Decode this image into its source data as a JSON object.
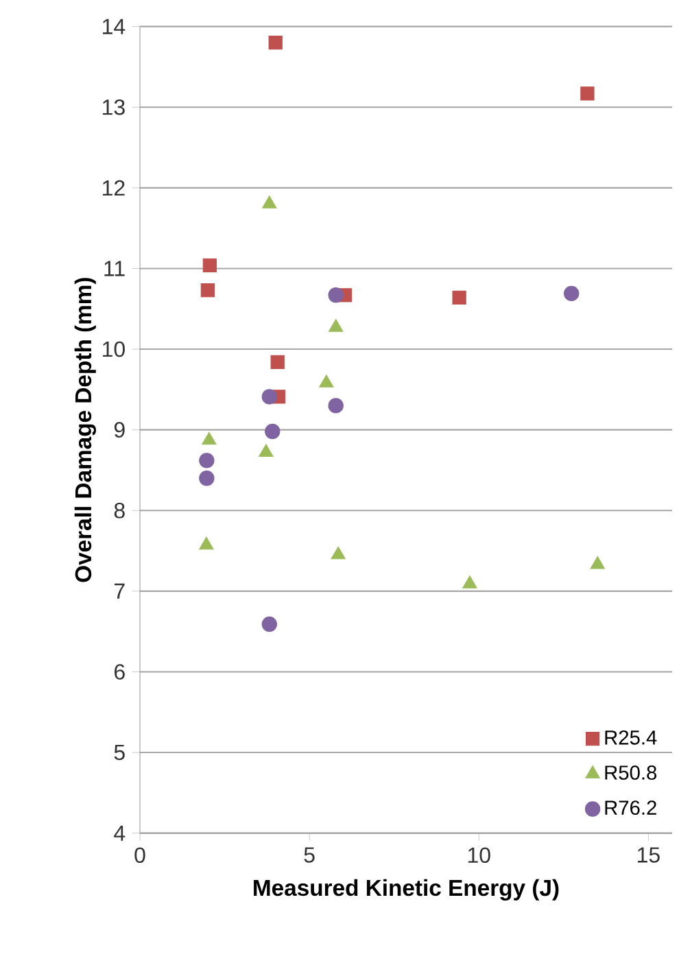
{
  "chart_data": {
    "type": "scatter",
    "xlabel": "Measured Kinetic Energy (J)",
    "ylabel": "Overall Damage Depth (mm)",
    "xlim": [
      0,
      15.7
    ],
    "xticks": [
      0,
      5,
      10,
      15
    ],
    "ylim": [
      4,
      14
    ],
    "yticks": [
      4,
      5,
      6,
      7,
      8,
      9,
      10,
      11,
      12,
      13,
      14
    ],
    "grid": "y",
    "legend": "bottom right",
    "series": [
      {
        "name": "R25.4",
        "color": "#c0504d",
        "marker": "square",
        "x": [
          4.0,
          13.2,
          2.06,
          2.0,
          6.05,
          9.42,
          4.06,
          4.09
        ],
        "values": [
          13.8,
          13.17,
          11.04,
          10.73,
          10.67,
          10.64,
          9.84,
          9.41
        ]
      },
      {
        "name": "R50.8",
        "color": "#9bbb59",
        "marker": "triangle",
        "x": [
          3.82,
          5.78,
          5.5,
          2.04,
          3.72,
          1.96,
          5.85,
          9.73,
          13.5
        ],
        "values": [
          11.8,
          10.27,
          9.58,
          8.87,
          8.72,
          7.57,
          7.45,
          7.09,
          7.33
        ]
      },
      {
        "name": "R76.2",
        "color": "#8064a2",
        "marker": "circle",
        "x": [
          5.78,
          12.73,
          3.82,
          5.78,
          3.91,
          1.97,
          1.97,
          3.82
        ],
        "values": [
          10.67,
          10.69,
          9.41,
          9.3,
          8.98,
          8.62,
          8.4,
          6.59
        ]
      }
    ]
  }
}
